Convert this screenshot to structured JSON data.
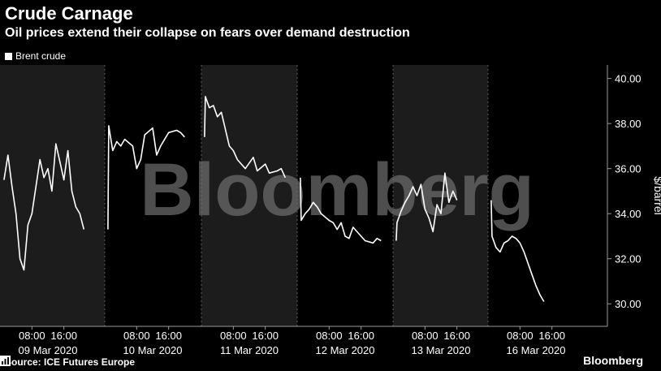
{
  "header": {
    "title": "Crude Carnage",
    "subtitle": "Oil prices extend their collapse on fears over demand destruction"
  },
  "footer": {
    "source": "Source: ICE Futures Europe",
    "brand": "Bloomberg"
  },
  "watermark": "Bloomberg",
  "colors": {
    "background": "#000000",
    "shade": "#1c1c1c",
    "line": "#ffffff",
    "axis": "#9a9a9a",
    "watermark": "#6f6f6f"
  },
  "chart_data": {
    "type": "line",
    "title": "Crude Carnage",
    "subtitle": "Oil prices extend their collapse on fears over demand destruction",
    "legend": "top-left",
    "ylabel": "$/barrel",
    "ylim": [
      29.0,
      40.6
    ],
    "yticks": [
      "40.00",
      "38.00",
      "36.00",
      "34.00",
      "32.00",
      "30.00"
    ],
    "days": [
      {
        "date": "09 Mar 2020",
        "times": [
          "08:00",
          "16:00"
        ],
        "shaded": true
      },
      {
        "date": "10 Mar 2020",
        "times": [
          "08:00",
          "16:00"
        ],
        "shaded": false
      },
      {
        "date": "11 Mar 2020",
        "times": [
          "08:00",
          "16:00"
        ],
        "shaded": true
      },
      {
        "date": "12 Mar 2020",
        "times": [
          "08:00",
          "16:00"
        ],
        "shaded": false
      },
      {
        "date": "13 Mar 2020",
        "times": [
          "08:00",
          "16:00"
        ],
        "shaded": true
      },
      {
        "date": "16 Mar 2020",
        "times": [
          "08:00",
          "16:00"
        ],
        "shaded": false
      }
    ],
    "series": [
      {
        "name": "Brent crude",
        "points": [
          {
            "day": 0,
            "hour": 1.0,
            "value": 35.5
          },
          {
            "day": 0,
            "hour": 2.0,
            "value": 36.6
          },
          {
            "day": 0,
            "hour": 3.0,
            "value": 35.2
          },
          {
            "day": 0,
            "hour": 4.0,
            "value": 34.0
          },
          {
            "day": 0,
            "hour": 5.0,
            "value": 32.0
          },
          {
            "day": 0,
            "hour": 6.0,
            "value": 31.5
          },
          {
            "day": 0,
            "hour": 7.0,
            "value": 33.5
          },
          {
            "day": 0,
            "hour": 8.0,
            "value": 34.0
          },
          {
            "day": 0,
            "hour": 10.0,
            "value": 36.4
          },
          {
            "day": 0,
            "hour": 11.0,
            "value": 35.6
          },
          {
            "day": 0,
            "hour": 12.0,
            "value": 36.0
          },
          {
            "day": 0,
            "hour": 13.0,
            "value": 35.0
          },
          {
            "day": 0,
            "hour": 14.0,
            "value": 37.1
          },
          {
            "day": 0,
            "hour": 15.0,
            "value": 36.3
          },
          {
            "day": 0,
            "hour": 16.0,
            "value": 35.5
          },
          {
            "day": 0,
            "hour": 17.0,
            "value": 36.8
          },
          {
            "day": 0,
            "hour": 18.0,
            "value": 35.0
          },
          {
            "day": 0,
            "hour": 19.0,
            "value": 34.3
          },
          {
            "day": 0,
            "hour": 20.0,
            "value": 34.0
          },
          {
            "day": 0,
            "hour": 21.0,
            "value": 33.3
          },
          {
            "day": 1,
            "hour": 1.0,
            "value": 37.9
          },
          {
            "day": 1,
            "hour": 2.0,
            "value": 36.8
          },
          {
            "day": 1,
            "hour": 3.0,
            "value": 37.2
          },
          {
            "day": 1,
            "hour": 4.0,
            "value": 37.0
          },
          {
            "day": 1,
            "hour": 5.0,
            "value": 37.3
          },
          {
            "day": 1,
            "hour": 7.0,
            "value": 37.0
          },
          {
            "day": 1,
            "hour": 8.0,
            "value": 36.0
          },
          {
            "day": 1,
            "hour": 9.0,
            "value": 36.4
          },
          {
            "day": 1,
            "hour": 10.0,
            "value": 37.5
          },
          {
            "day": 1,
            "hour": 12.0,
            "value": 37.8
          },
          {
            "day": 1,
            "hour": 13.0,
            "value": 36.6
          },
          {
            "day": 1,
            "hour": 14.0,
            "value": 37.0
          },
          {
            "day": 1,
            "hour": 16.0,
            "value": 37.6
          },
          {
            "day": 1,
            "hour": 18.0,
            "value": 37.7
          },
          {
            "day": 1,
            "hour": 19.0,
            "value": 37.6
          },
          {
            "day": 1,
            "hour": 20.0,
            "value": 37.4
          },
          {
            "day": 2,
            "hour": 1.0,
            "value": 39.2
          },
          {
            "day": 2,
            "hour": 2.0,
            "value": 38.7
          },
          {
            "day": 2,
            "hour": 3.0,
            "value": 38.8
          },
          {
            "day": 2,
            "hour": 4.0,
            "value": 38.3
          },
          {
            "day": 2,
            "hour": 5.0,
            "value": 38.5
          },
          {
            "day": 2,
            "hour": 7.0,
            "value": 37.0
          },
          {
            "day": 2,
            "hour": 8.0,
            "value": 36.8
          },
          {
            "day": 2,
            "hour": 9.0,
            "value": 36.4
          },
          {
            "day": 2,
            "hour": 11.0,
            "value": 36.0
          },
          {
            "day": 2,
            "hour": 13.0,
            "value": 36.5
          },
          {
            "day": 2,
            "hour": 14.0,
            "value": 35.9
          },
          {
            "day": 2,
            "hour": 16.0,
            "value": 36.2
          },
          {
            "day": 2,
            "hour": 17.0,
            "value": 35.8
          },
          {
            "day": 2,
            "hour": 19.0,
            "value": 35.9
          },
          {
            "day": 2,
            "hour": 20.0,
            "value": 36.0
          },
          {
            "day": 2,
            "hour": 21.0,
            "value": 35.6
          },
          {
            "day": 3,
            "hour": 1.0,
            "value": 33.7
          },
          {
            "day": 3,
            "hour": 2.0,
            "value": 34.0
          },
          {
            "day": 3,
            "hour": 3.0,
            "value": 34.2
          },
          {
            "day": 3,
            "hour": 4.0,
            "value": 34.5
          },
          {
            "day": 3,
            "hour": 5.0,
            "value": 34.3
          },
          {
            "day": 3,
            "hour": 6.0,
            "value": 34.0
          },
          {
            "day": 3,
            "hour": 8.0,
            "value": 33.7
          },
          {
            "day": 3,
            "hour": 9.0,
            "value": 33.6
          },
          {
            "day": 3,
            "hour": 10.0,
            "value": 33.3
          },
          {
            "day": 3,
            "hour": 11.0,
            "value": 33.6
          },
          {
            "day": 3,
            "hour": 12.0,
            "value": 33.0
          },
          {
            "day": 3,
            "hour": 13.0,
            "value": 32.9
          },
          {
            "day": 3,
            "hour": 14.0,
            "value": 33.4
          },
          {
            "day": 3,
            "hour": 16.0,
            "value": 33.0
          },
          {
            "day": 3,
            "hour": 17.0,
            "value": 32.8
          },
          {
            "day": 3,
            "hour": 19.0,
            "value": 32.7
          },
          {
            "day": 3,
            "hour": 20.0,
            "value": 32.9
          },
          {
            "day": 3,
            "hour": 21.0,
            "value": 32.8
          },
          {
            "day": 4,
            "hour": 1.0,
            "value": 33.6
          },
          {
            "day": 4,
            "hour": 2.0,
            "value": 34.1
          },
          {
            "day": 4,
            "hour": 3.0,
            "value": 34.5
          },
          {
            "day": 4,
            "hour": 4.0,
            "value": 34.8
          },
          {
            "day": 4,
            "hour": 5.0,
            "value": 35.2
          },
          {
            "day": 4,
            "hour": 6.0,
            "value": 34.8
          },
          {
            "day": 4,
            "hour": 7.0,
            "value": 35.3
          },
          {
            "day": 4,
            "hour": 8.0,
            "value": 34.2
          },
          {
            "day": 4,
            "hour": 9.0,
            "value": 33.8
          },
          {
            "day": 4,
            "hour": 10.0,
            "value": 33.2
          },
          {
            "day": 4,
            "hour": 11.0,
            "value": 34.4
          },
          {
            "day": 4,
            "hour": 12.0,
            "value": 34.0
          },
          {
            "day": 4,
            "hour": 13.0,
            "value": 35.8
          },
          {
            "day": 4,
            "hour": 14.0,
            "value": 34.5
          },
          {
            "day": 4,
            "hour": 15.0,
            "value": 35.0
          },
          {
            "day": 4,
            "hour": 16.0,
            "value": 34.6
          },
          {
            "day": 5,
            "hour": 1.0,
            "value": 33.0
          },
          {
            "day": 5,
            "hour": 2.0,
            "value": 32.5
          },
          {
            "day": 5,
            "hour": 3.0,
            "value": 32.3
          },
          {
            "day": 5,
            "hour": 4.0,
            "value": 32.7
          },
          {
            "day": 5,
            "hour": 5.0,
            "value": 32.8
          },
          {
            "day": 5,
            "hour": 6.0,
            "value": 33.0
          },
          {
            "day": 5,
            "hour": 7.0,
            "value": 32.9
          },
          {
            "day": 5,
            "hour": 8.0,
            "value": 32.7
          },
          {
            "day": 5,
            "hour": 9.0,
            "value": 32.3
          },
          {
            "day": 5,
            "hour": 10.0,
            "value": 31.8
          },
          {
            "day": 5,
            "hour": 11.0,
            "value": 31.3
          },
          {
            "day": 5,
            "hour": 12.0,
            "value": 30.8
          },
          {
            "day": 5,
            "hour": 13.0,
            "value": 30.4
          },
          {
            "day": 5,
            "hour": 14.0,
            "value": 30.1
          }
        ]
      }
    ]
  }
}
